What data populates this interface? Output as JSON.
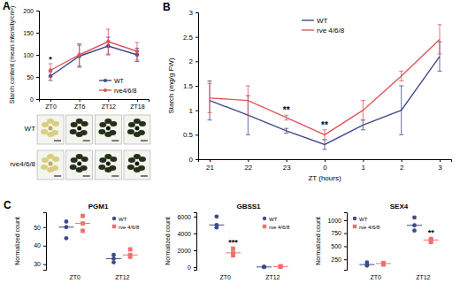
{
  "chart_data": [
    {
      "panel_label": "A",
      "type": "line",
      "y_label": "Starch content (mean intensity/cm²)",
      "categories": [
        "ZT0",
        "ZT6",
        "ZT12",
        "ZT18"
      ],
      "ylim": [
        0,
        200
      ],
      "yticks": [
        0,
        50,
        100,
        150,
        200
      ],
      "series": [
        {
          "name": "WT",
          "color": "#3f4a8a",
          "marker": "circle",
          "values": [
            52,
            97,
            120,
            100
          ],
          "errors": [
            10,
            25,
            20,
            15
          ]
        },
        {
          "name": "rve4/6/8",
          "color": "#e0565b",
          "marker": "circle",
          "values": [
            65,
            100,
            130,
            108
          ],
          "errors": [
            15,
            25,
            28,
            20
          ]
        }
      ],
      "legend": "lower right",
      "annotations": [
        {
          "text": "*",
          "x": "ZT0"
        }
      ],
      "image_row_labels": [
        "WT",
        "rve4/6/8"
      ]
    },
    {
      "panel_label": "B",
      "type": "line",
      "x_label": "ZT (hours)",
      "y_label": "Starch (mg/g FW)",
      "categories": [
        "21",
        "22",
        "23",
        "0",
        "1",
        "2",
        "3"
      ],
      "ylim": [
        0,
        3
      ],
      "yticks": [
        0,
        0.5,
        1,
        1.5,
        2,
        2.5,
        3
      ],
      "series": [
        {
          "name": "WT",
          "color": "#3f4a8a",
          "marker": "none",
          "values": [
            1.2,
            0.9,
            0.58,
            0.3,
            0.7,
            1.0,
            2.1
          ],
          "errors": [
            0.4,
            0.4,
            0.05,
            0.1,
            0.1,
            0.5,
            0.3
          ]
        },
        {
          "name": "rve 4/6/8",
          "color": "#e0565b",
          "marker": "none",
          "values": [
            1.25,
            1.2,
            0.85,
            0.5,
            1.0,
            1.7,
            2.45
          ],
          "errors": [
            0.3,
            0.3,
            0.05,
            0.1,
            0.2,
            0.1,
            0.3
          ]
        }
      ],
      "legend": "upper center",
      "annotations": [
        {
          "text": "**",
          "x": "23"
        },
        {
          "text": "**",
          "x": "0"
        }
      ]
    },
    {
      "panel_label": "C",
      "type": "dot",
      "title": "PGM1",
      "y_label": "Normalized count",
      "categories": [
        "ZT0",
        "ZT12"
      ],
      "ylim": [
        27,
        58
      ],
      "yticks": [
        30,
        40,
        50
      ],
      "series": [
        {
          "name": "WT",
          "color": "#3f4a8a",
          "marker": "circle",
          "values": [
            [
              50,
              44,
              53
            ],
            [
              31,
              35,
              33
            ]
          ]
        },
        {
          "name": "rve 4/6/8",
          "color": "#f07070",
          "marker": "square",
          "values": [
            [
              48,
              52,
              56
            ],
            [
              34,
              38,
              35
            ]
          ]
        }
      ],
      "legend": "upper right",
      "annotations": []
    },
    {
      "type": "dot",
      "title": "GBSS1",
      "y_label": "Normalized count",
      "categories": [
        "ZT0",
        "ZT12"
      ],
      "ylim": [
        -300,
        6500
      ],
      "yticks": [
        0,
        2000,
        4000,
        6000
      ],
      "series": [
        {
          "name": "WT",
          "color": "#3f4a8a",
          "marker": "circle",
          "values": [
            [
              5000,
              4700,
              6000
            ],
            [
              30,
              20,
              40
            ]
          ]
        },
        {
          "name": "rve 4/6/8",
          "color": "#f07070",
          "marker": "square",
          "values": [
            [
              1700,
              1400,
              2200
            ],
            [
              80,
              60,
              120
            ]
          ]
        }
      ],
      "legend": "upper right",
      "annotations": [
        {
          "text": "***",
          "x": "ZT0"
        }
      ]
    },
    {
      "type": "dot",
      "title": "SEX4",
      "y_label": "Normalized count",
      "categories": [
        "ZT0",
        "ZT12"
      ],
      "ylim": [
        50,
        1150
      ],
      "yticks": [
        250,
        500,
        750,
        1000
      ],
      "series": [
        {
          "name": "WT",
          "color": "#3f4a8a",
          "marker": "circle",
          "values": [
            [
              150,
              130,
              190
            ],
            [
              900,
              1050,
              800
            ]
          ]
        },
        {
          "name": "rve 4/6/8",
          "color": "#f07070",
          "marker": "square",
          "values": [
            [
              170,
              180,
              150
            ],
            [
              620,
              580,
              640
            ]
          ]
        }
      ],
      "legend": "upper left",
      "annotations": [
        {
          "text": "**",
          "x": "ZT12"
        }
      ]
    }
  ]
}
